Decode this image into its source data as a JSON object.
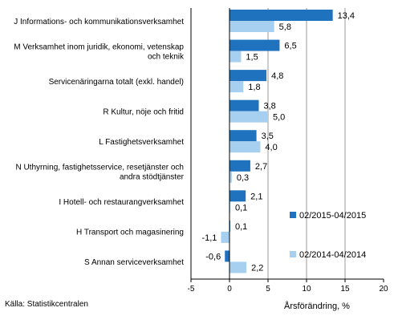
{
  "chart_data": {
    "type": "bar",
    "orientation": "horizontal",
    "categories": [
      "J Informations- och kommunikationsverksamhet",
      "M Verksamhet inom juridik, ekonomi, vetenskap och teknik",
      "Servicenäringarna totalt (exkl. handel)",
      "R Kultur, nöje och fritid",
      "L Fastighetsverksamhet",
      "N Uthyrning, fastighetsservice, resetjänster och andra stödtjänster",
      "I Hotell- och restaurangverksamhet",
      "H Transport och magasinering",
      "S Annan serviceverksamhet"
    ],
    "category_lines": [
      [
        "J Informations- och kommunikationsverksamhet"
      ],
      [
        "M Verksamhet inom juridik, ekonomi, vetenskap",
        "och teknik"
      ],
      [
        "Servicenäringarna totalt (exkl. handel)"
      ],
      [
        "R Kultur, nöje och fritid"
      ],
      [
        "L Fastighetsverksamhet"
      ],
      [
        "N Uthyrning, fastighetsservice, resetjänster och",
        "andra stödtjänster"
      ],
      [
        "I Hotell- och restaurangverksamhet"
      ],
      [
        "H Transport och magasinering"
      ],
      [
        "S Annan serviceverksamhet"
      ]
    ],
    "series": [
      {
        "name": "02/2015-04/2015",
        "color": "#1f72bd",
        "values": [
          13.4,
          6.5,
          4.8,
          3.8,
          3.5,
          2.7,
          2.1,
          0.1,
          -0.6
        ],
        "labels": [
          "13,4",
          "6,5",
          "4,8",
          "3,8",
          "3,5",
          "2,7",
          "2,1",
          "0,1",
          "-0,6"
        ]
      },
      {
        "name": "02/2014-04/2014",
        "color": "#a6cff0",
        "values": [
          5.8,
          1.5,
          1.8,
          5.0,
          4.0,
          0.3,
          0.1,
          -1.1,
          2.2
        ],
        "labels": [
          "5,8",
          "1,5",
          "1,8",
          "5,0",
          "4,0",
          "0,3",
          "0,1",
          "-1,1",
          "2,2"
        ]
      }
    ],
    "xlabel": "Årsförändring, %",
    "xlim": [
      -5,
      20
    ],
    "xticks": [
      -5,
      0,
      5,
      10,
      15,
      20
    ],
    "grid": true,
    "legend": "right"
  },
  "source": "Källa:  Statistikcentralen"
}
